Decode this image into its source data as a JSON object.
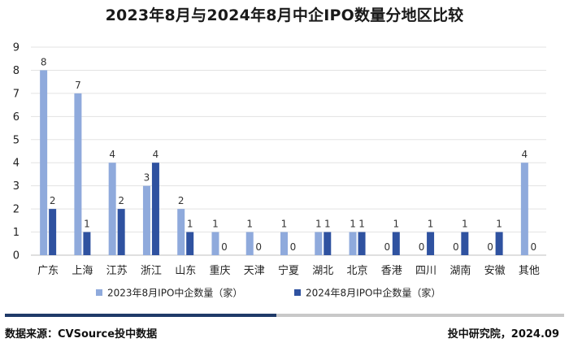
{
  "chart_data": {
    "type": "bar",
    "title": "2023年8月与2024年8月中企IPO数量分地区比较",
    "xlabel": "",
    "ylabel": "",
    "ylim": [
      0,
      9
    ],
    "yticks": [
      0,
      1,
      2,
      3,
      4,
      5,
      6,
      7,
      8,
      9
    ],
    "categories": [
      "广东",
      "上海",
      "江苏",
      "浙江",
      "山东",
      "重庆",
      "天津",
      "宁夏",
      "湖北",
      "北京",
      "香港",
      "四川",
      "湖南",
      "安徽",
      "其他"
    ],
    "series": [
      {
        "name": "2023年8月IPO中企数量（家）",
        "color": "#8faadc",
        "values": [
          8,
          7,
          4,
          3,
          2,
          1,
          1,
          1,
          1,
          1,
          0,
          0,
          0,
          0,
          4
        ]
      },
      {
        "name": "2024年8月IPO中企数量（家）",
        "color": "#2f52a0",
        "values": [
          2,
          1,
          2,
          4,
          1,
          0,
          0,
          0,
          1,
          1,
          1,
          1,
          1,
          1,
          0
        ]
      }
    ],
    "grid": true,
    "legend": "bottom"
  },
  "footer": {
    "source": "数据来源：CVSource投中数据",
    "credit": "投中研究院，2024.09"
  }
}
